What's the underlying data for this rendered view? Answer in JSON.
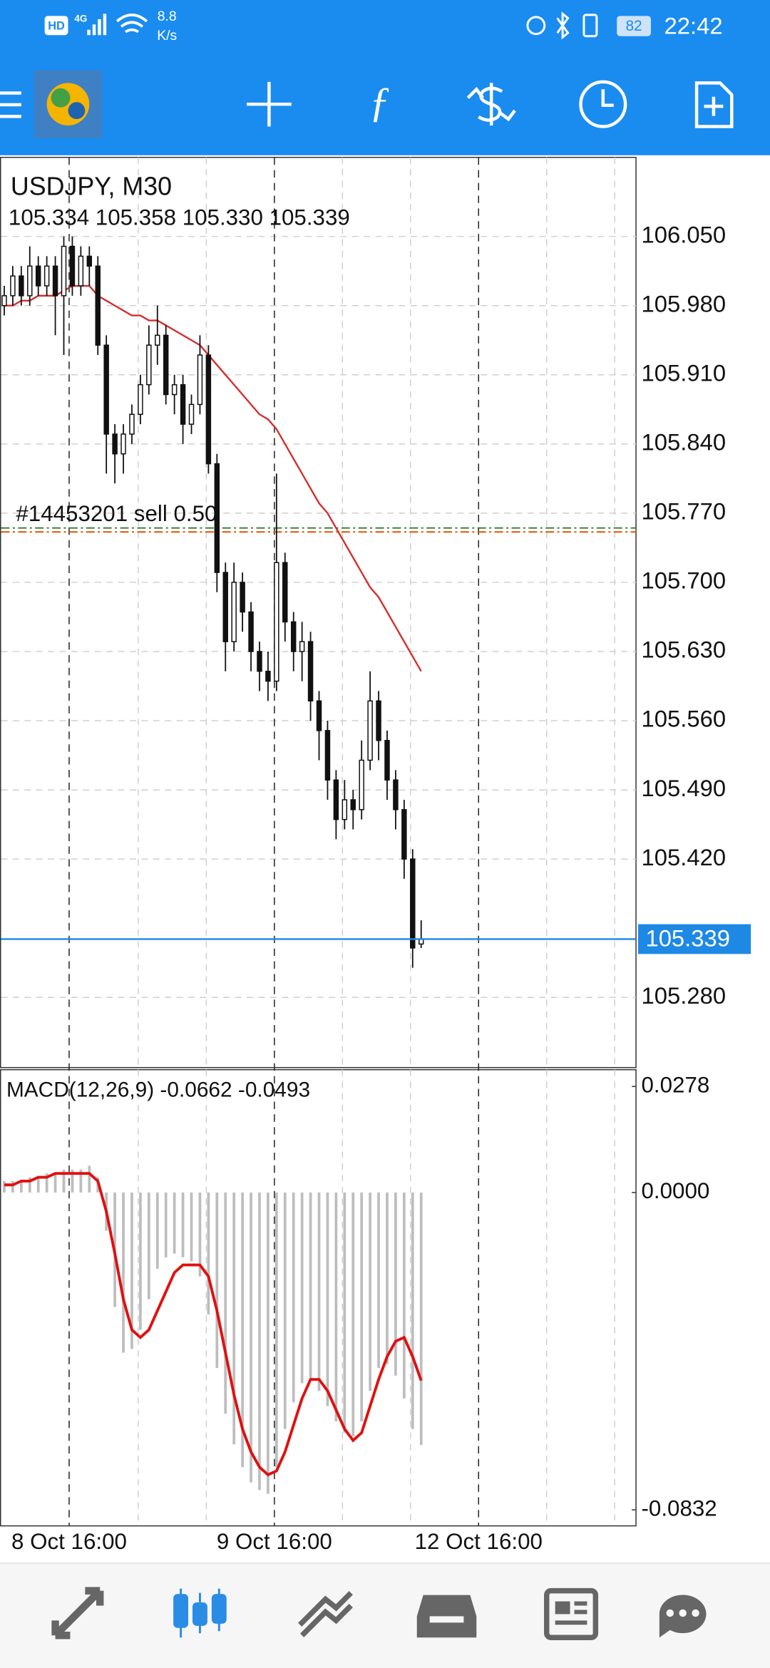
{
  "status_bar": {
    "hd": "HD",
    "network": "4G",
    "speed": "8.8",
    "speed_unit": "K/s",
    "battery": "82",
    "time": "22:42"
  },
  "chart_data": {
    "type": "candlestick",
    "title": "USDJPY, M30",
    "ohlc_text": "105.334 105.358 105.330 105.339",
    "open": [
      105.98,
      105.99,
      106.01,
      105.99,
      106.02,
      106.0,
      106.02,
      105.99,
      106.04,
      106.0,
      106.03,
      106.02,
      105.94,
      105.85,
      105.83,
      105.85,
      105.87,
      105.9,
      105.94,
      105.95,
      105.89,
      105.9,
      105.86,
      105.88,
      105.93,
      105.82,
      105.71,
      105.64,
      105.7,
      105.67,
      105.63,
      105.61,
      105.6,
      105.72,
      105.66,
      105.63,
      105.64,
      105.58,
      105.55,
      105.5,
      105.46,
      105.48,
      105.47,
      105.52,
      105.58,
      105.54,
      105.5,
      105.47,
      105.42,
      105.334
    ],
    "high": [
      106.0,
      106.02,
      106.02,
      106.04,
      106.03,
      106.03,
      106.03,
      106.05,
      106.05,
      106.04,
      106.04,
      106.03,
      105.95,
      105.86,
      105.86,
      105.88,
      105.91,
      105.96,
      105.98,
      105.96,
      105.91,
      105.91,
      105.89,
      105.95,
      105.94,
      105.83,
      105.72,
      105.72,
      105.71,
      105.68,
      105.64,
      105.63,
      105.81,
      105.73,
      105.67,
      105.66,
      105.65,
      105.59,
      105.56,
      105.51,
      105.5,
      105.49,
      105.54,
      105.61,
      105.59,
      105.55,
      105.51,
      105.48,
      105.43,
      105.358
    ],
    "low": [
      105.97,
      105.98,
      105.98,
      105.98,
      105.99,
      105.99,
      105.95,
      105.93,
      105.99,
      105.99,
      106.0,
      105.93,
      105.81,
      105.8,
      105.81,
      105.84,
      105.86,
      105.89,
      105.92,
      105.88,
      105.87,
      105.84,
      105.85,
      105.87,
      105.81,
      105.69,
      105.61,
      105.63,
      105.65,
      105.61,
      105.59,
      105.58,
      105.59,
      105.64,
      105.61,
      105.6,
      105.56,
      105.52,
      105.48,
      105.44,
      105.45,
      105.45,
      105.46,
      105.51,
      105.52,
      105.48,
      105.45,
      105.4,
      105.31,
      105.33
    ],
    "close": [
      105.99,
      106.01,
      105.99,
      106.02,
      106.0,
      106.02,
      105.99,
      106.04,
      106.0,
      106.03,
      106.02,
      105.94,
      105.85,
      105.83,
      105.85,
      105.87,
      105.9,
      105.94,
      105.95,
      105.89,
      105.9,
      105.86,
      105.88,
      105.93,
      105.82,
      105.71,
      105.64,
      105.7,
      105.67,
      105.63,
      105.61,
      105.6,
      105.72,
      105.66,
      105.63,
      105.64,
      105.58,
      105.55,
      105.5,
      105.46,
      105.48,
      105.47,
      105.52,
      105.58,
      105.54,
      105.5,
      105.47,
      105.42,
      105.33,
      105.339
    ],
    "candle_color": "#111111",
    "ma": {
      "color": "#d32f2f",
      "values": [
        105.98,
        105.98,
        105.985,
        105.985,
        105.99,
        105.99,
        105.99,
        105.995,
        106.0,
        106.0,
        106.0,
        105.99,
        105.985,
        105.98,
        105.975,
        105.97,
        105.97,
        105.965,
        105.965,
        105.96,
        105.955,
        105.95,
        105.945,
        105.94,
        105.93,
        105.92,
        105.91,
        105.9,
        105.89,
        105.88,
        105.87,
        105.865,
        105.855,
        105.84,
        105.825,
        105.81,
        105.795,
        105.78,
        105.77,
        105.755,
        105.74,
        105.725,
        105.71,
        105.695,
        105.685,
        105.67,
        105.655,
        105.64,
        105.625,
        105.61
      ]
    },
    "ylim": [
      105.209,
      106.13
    ],
    "yticks": [
      {
        "value": 106.05,
        "label": "106.050"
      },
      {
        "value": 105.98,
        "label": "105.980"
      },
      {
        "value": 105.91,
        "label": "105.910"
      },
      {
        "value": 105.84,
        "label": "105.840"
      },
      {
        "value": 105.77,
        "label": "105.770"
      },
      {
        "value": 105.7,
        "label": "105.700"
      },
      {
        "value": 105.63,
        "label": "105.630"
      },
      {
        "value": 105.56,
        "label": "105.560"
      },
      {
        "value": 105.49,
        "label": "105.490"
      },
      {
        "value": 105.42,
        "label": "105.420"
      },
      {
        "value": 105.28,
        "label": "105.280"
      }
    ],
    "grid": true,
    "bid": 105.339,
    "bid_color": "#1e88e5",
    "order_label": "#14453201 sell 0.50",
    "order_lines": [
      {
        "price": 105.755,
        "color": "#2e7d32"
      },
      {
        "price": 105.751,
        "color": "#e65100"
      }
    ],
    "xlim": [
      -0.5,
      74.25
    ],
    "xticks": [
      {
        "value": 7.625,
        "label": "8 Oct 16:00"
      },
      {
        "value": 31.75,
        "label": "9 Oct 16:00"
      },
      {
        "value": 55.75,
        "label": "12 Oct 16:00"
      }
    ],
    "xgrid": [
      15.75,
      23.75,
      39.75,
      47.75,
      63.75,
      71.75
    ],
    "indicator": {
      "title": "MACD(12,26,9) -0.0662 -0.0493",
      "histogram": {
        "color": "#bdbdbd",
        "values": [
          0.003,
          0.003,
          0.003,
          0.004,
          0.004,
          0.005,
          0.005,
          0.006,
          0.006,
          0.006,
          0.007,
          0.004,
          -0.01,
          -0.03,
          -0.042,
          -0.041,
          -0.036,
          -0.028,
          -0.02,
          -0.017,
          -0.016,
          -0.017,
          -0.018,
          -0.022,
          -0.032,
          -0.046,
          -0.058,
          -0.066,
          -0.072,
          -0.076,
          -0.078,
          -0.079,
          -0.072,
          -0.062,
          -0.055,
          -0.05,
          -0.049,
          -0.052,
          -0.056,
          -0.06,
          -0.063,
          -0.064,
          -0.06,
          -0.052,
          -0.046,
          -0.045,
          -0.048,
          -0.054,
          -0.062,
          -0.0662
        ]
      },
      "signal": {
        "color": "#e01010",
        "values": [
          0.002,
          0.002,
          0.003,
          0.003,
          0.004,
          0.004,
          0.005,
          0.005,
          0.005,
          0.005,
          0.005,
          0.003,
          -0.005,
          -0.016,
          -0.028,
          -0.036,
          -0.038,
          -0.036,
          -0.031,
          -0.026,
          -0.021,
          -0.019,
          -0.019,
          -0.019,
          -0.022,
          -0.031,
          -0.042,
          -0.053,
          -0.062,
          -0.068,
          -0.072,
          -0.074,
          -0.073,
          -0.068,
          -0.061,
          -0.054,
          -0.049,
          -0.049,
          -0.052,
          -0.057,
          -0.062,
          -0.065,
          -0.063,
          -0.056,
          -0.049,
          -0.043,
          -0.039,
          -0.038,
          -0.043,
          -0.0493
        ]
      },
      "ylim": [
        -0.0874,
        0.0322
      ],
      "yticks": [
        0.0278,
        {
          "value": 0,
          "label": "0.0000"
        },
        -0.0832
      ]
    }
  }
}
